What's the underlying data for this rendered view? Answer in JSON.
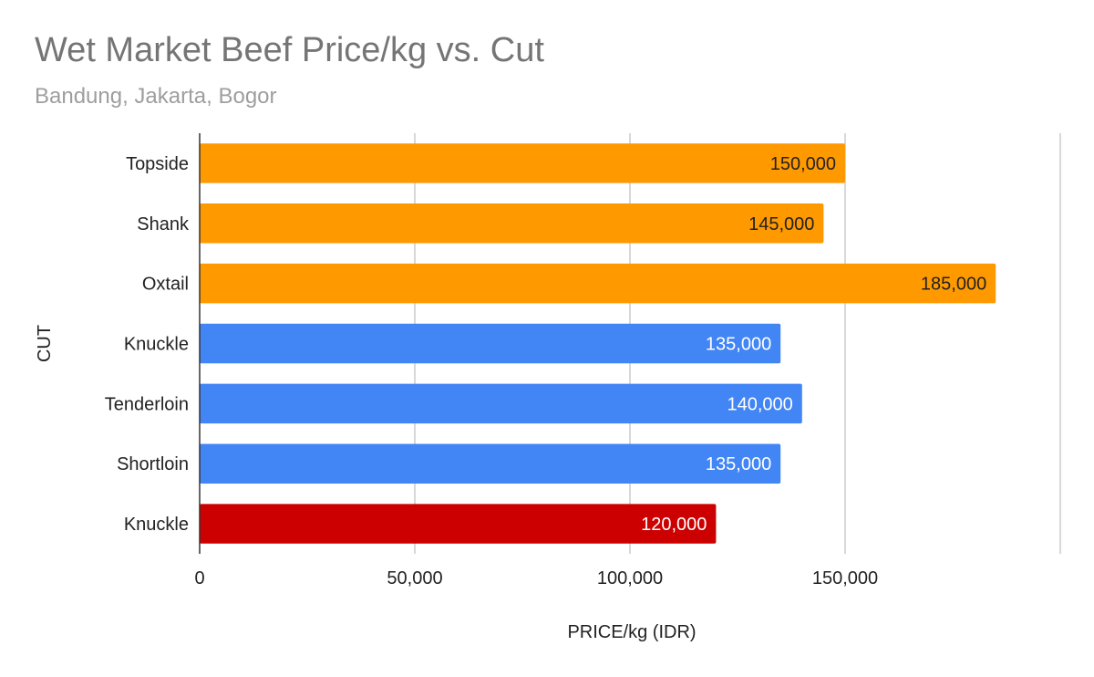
{
  "chart_data": {
    "type": "bar",
    "orientation": "horizontal",
    "title": "Wet Market Beef Price/kg vs. Cut",
    "subtitle": "Bandung, Jakarta, Bogor",
    "xlabel": "PRICE/kg (IDR)",
    "ylabel": "CUT",
    "xlim": [
      0,
      200000
    ],
    "xticks": [
      0,
      50000,
      100000,
      150000
    ],
    "xtick_labels": [
      "0",
      "50,000",
      "100,000",
      "150,000"
    ],
    "grid": true,
    "legend": "none",
    "categories": [
      "Topside",
      "Shank",
      "Oxtail",
      "Knuckle",
      "Tenderloin",
      "Shortloin",
      "Knuckle"
    ],
    "values": [
      150000,
      145000,
      185000,
      135000,
      140000,
      135000,
      120000
    ],
    "value_labels": [
      "150,000",
      "145,000",
      "185,000",
      "135,000",
      "140,000",
      "135,000",
      "120,000"
    ],
    "bar_colors": [
      "#ff9900",
      "#ff9900",
      "#ff9900",
      "#4285f4",
      "#4285f4",
      "#4285f4",
      "#cc0000"
    ],
    "label_colors": [
      "#222222",
      "#222222",
      "#222222",
      "#ffffff",
      "#ffffff",
      "#ffffff",
      "#ffffff"
    ]
  }
}
